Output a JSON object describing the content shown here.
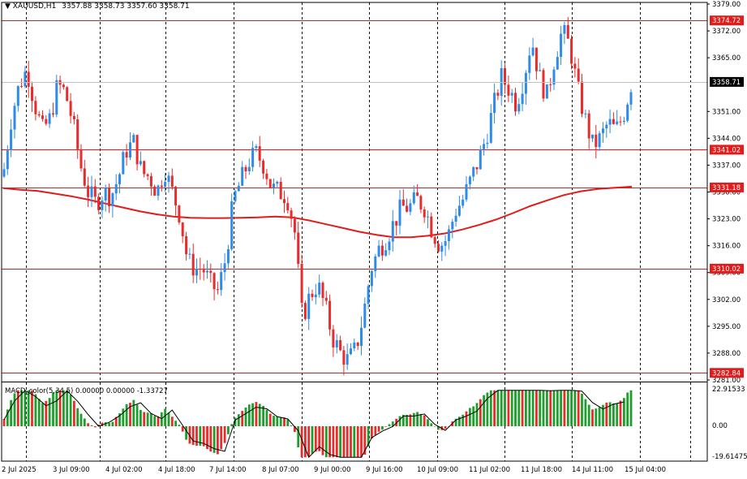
{
  "header": {
    "menu_icon": "triangle-down-icon",
    "symbol": "XAUUSD,H1",
    "ohlc": "3357.88 3358.73 3357.60 3358.71"
  },
  "price_axis": {
    "ticks": [
      "3379.00",
      "3372.00",
      "3365.00",
      "3351.00",
      "3344.00",
      "3337.00",
      "3330.00",
      "3323.00",
      "3316.00",
      "3309.00",
      "3302.00",
      "3295.00",
      "3288.00",
      "3281.00"
    ],
    "current_price": "3358.71"
  },
  "levels": [
    {
      "label": "3374.72",
      "value": 3374.72
    },
    {
      "label": "3341.02",
      "value": 3341.02
    },
    {
      "label": "3331.18",
      "value": 3331.18
    },
    {
      "label": "3310.02",
      "value": 3310.02
    },
    {
      "label": "3282.84",
      "value": 3282.84
    }
  ],
  "macd": {
    "title": "MACD_color(5,34,5) 0.00000 0.00000 -1.33727",
    "ticks": [
      "22.91533",
      "0.00",
      "-19.61475"
    ]
  },
  "time_axis": {
    "labels": [
      "2 Jul 2025",
      "3 Jul 09:00",
      "4 Jul 02:00",
      "4 Jul 18:00",
      "7 Jul 14:00",
      "8 Jul 07:00",
      "9 Jul 00:00",
      "9 Jul 16:00",
      "10 Jul 09:00",
      "11 Jul 02:00",
      "11 Jul 18:00",
      "14 Jul 11:00",
      "15 Jul 04:00"
    ]
  },
  "colors": {
    "bull": "#2E8BE8",
    "bear": "#E82C2C",
    "ma": "#E21B1B",
    "level": "#E21B1B",
    "macd_up": "#1E9E2C",
    "macd_down": "#E82C2C",
    "signal": "#000000",
    "grid": "#000000"
  },
  "chart_data": {
    "type": "candlestick",
    "symbol": "XAUUSD",
    "timeframe": "H1",
    "ylim": [
      3281.0,
      3379.0
    ],
    "ma_series": [
      3331,
      3330.6,
      3330.3,
      3329.6,
      3328.9,
      3328,
      3327,
      3326,
      3325,
      3324.2,
      3323.6,
      3323.3,
      3323.2,
      3323.2,
      3323.3,
      3323.4,
      3323.6,
      3323.4,
      3322.6,
      3321.6,
      3320.6,
      3319.6,
      3318.8,
      3318.2,
      3318.2,
      3318.6,
      3319.2,
      3320.2,
      3321.4,
      3322.8,
      3324.5,
      3326.3,
      3327.8,
      3329.2,
      3330.2,
      3330.8,
      3331.1,
      3331.4
    ],
    "candles_note": "hourly OHLC candles from 2 Jul 2025 to 15 Jul 2025",
    "closes": [
      3336,
      3350,
      3358,
      3362,
      3353,
      3346,
      3349,
      3358,
      3356,
      3348,
      3337,
      3330,
      3327,
      3330,
      3329,
      3334,
      3341,
      3343,
      3335,
      3334,
      3330,
      3336,
      3330,
      3324,
      3312,
      3310,
      3310,
      3306,
      3304,
      3313,
      3328,
      3333,
      3338,
      3340,
      3337,
      3331,
      3330,
      3329,
      3320,
      3297,
      3303,
      3306,
      3300,
      3292,
      3288,
      3286,
      3289,
      3298,
      3310,
      3315,
      3318,
      3322,
      3326,
      3326,
      3328,
      3326,
      3320,
      3316,
      3318,
      3325,
      3328,
      3333,
      3338,
      3344,
      3352,
      3360,
      3357,
      3353,
      3360,
      3370,
      3360,
      3355,
      3365,
      3372,
      3368,
      3357,
      3349,
      3342,
      3344,
      3348,
      3346,
      3350,
      3358
    ]
  }
}
